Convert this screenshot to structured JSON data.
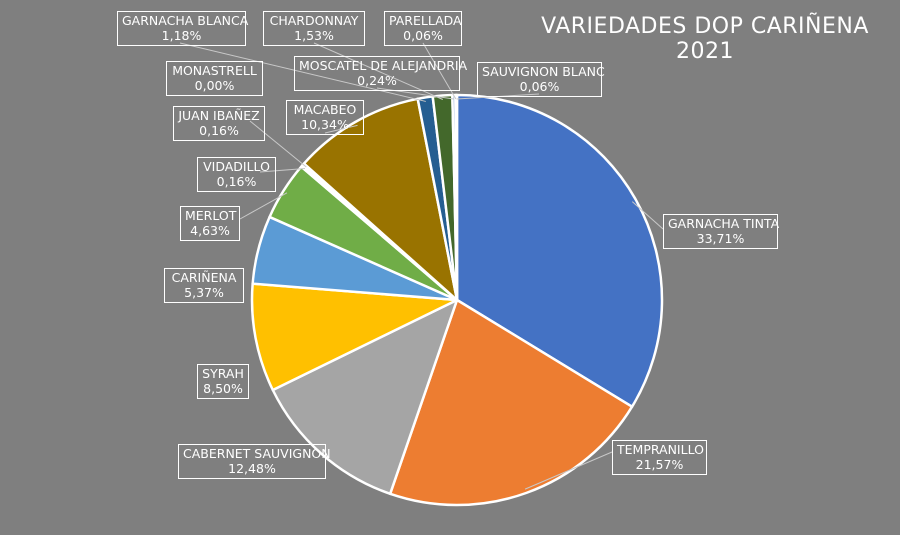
{
  "chart_data": {
    "type": "pie",
    "title": "VARIEDADES DOP CARIÑENA 2021",
    "slices": [
      {
        "label": "GARNACHA TINTA",
        "value": 33.71,
        "text": "33,71%",
        "color": "#4472c4"
      },
      {
        "label": "TEMPRANILLO",
        "value": 21.57,
        "text": "21,57%",
        "color": "#ed7d31"
      },
      {
        "label": "CABERNET SAUVIGNON",
        "value": 12.48,
        "text": "12,48%",
        "color": "#a5a5a5"
      },
      {
        "label": "SYRAH",
        "value": 8.5,
        "text": "8,50%",
        "color": "#ffc000"
      },
      {
        "label": "CARIÑENA",
        "value": 5.37,
        "text": "5,37%",
        "color": "#5b9bd5"
      },
      {
        "label": "MERLOT",
        "value": 4.63,
        "text": "4,63%",
        "color": "#70ad47"
      },
      {
        "label": "VIDADILLO",
        "value": 0.16,
        "text": "0,16%",
        "color": "#264478"
      },
      {
        "label": "JUAN IBAÑEZ",
        "value": 0.16,
        "text": "0,16%",
        "color": "#9e480e"
      },
      {
        "label": "MONASTRELL",
        "value": 0.0,
        "text": "0,00%",
        "color": "#636363"
      },
      {
        "label": "MACABEO",
        "value": 10.34,
        "text": "10,34%",
        "color": "#997300"
      },
      {
        "label": "GARNACHA BLANCA",
        "value": 1.18,
        "text": "1,18%",
        "color": "#255e91"
      },
      {
        "label": "CHARDONNAY",
        "value": 1.53,
        "text": "1,53%",
        "color": "#43682b"
      },
      {
        "label": "MOSCATEL DE ALEJANDRIA",
        "value": 0.24,
        "text": "0,24%",
        "color": "#698ed0"
      },
      {
        "label": "PARELLADA",
        "value": 0.06,
        "text": "0,06%",
        "color": "#f1975a"
      },
      {
        "label": "SAUVIGNON BLANC",
        "value": 0.06,
        "text": "0,06%",
        "color": "#b7b7b7"
      }
    ]
  }
}
